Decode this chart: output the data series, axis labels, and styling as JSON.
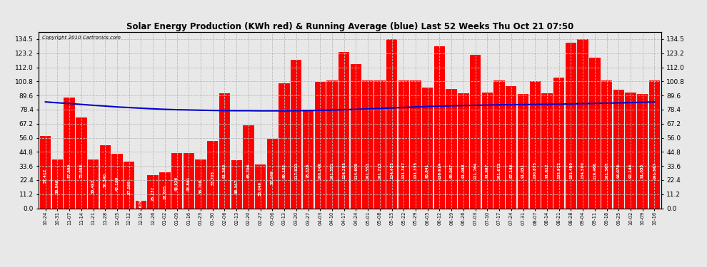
{
  "title": "Solar Energy Production (KWh red) & Running Average (blue) Last 52 Weeks Thu Oct 21 07:50",
  "copyright": "Copyright 2010 Cartronics.com",
  "bar_color": "#FF0000",
  "avg_color": "#0000CC",
  "background_color": "#E8E8E8",
  "grid_color": "#BBBBBB",
  "ylim": [
    0,
    140
  ],
  "yticks": [
    0.0,
    11.2,
    22.4,
    33.6,
    44.8,
    56.0,
    67.2,
    78.4,
    89.6,
    100.8,
    112.0,
    123.2,
    134.5
  ],
  "categories": [
    "10-24",
    "10-31",
    "11-07",
    "11-14",
    "11-21",
    "11-28",
    "12-05",
    "12-12",
    "12-19",
    "12-26",
    "01-02",
    "01-09",
    "01-16",
    "01-23",
    "01-30",
    "02-06",
    "02-13",
    "02-20",
    "02-27",
    "03-06",
    "03-13",
    "03-20",
    "03-27",
    "04-03",
    "04-10",
    "04-17",
    "04-24",
    "05-01",
    "05-08",
    "05-15",
    "05-22",
    "05-29",
    "06-05",
    "06-12",
    "06-19",
    "06-26",
    "07-03",
    "07-10",
    "07-17",
    "07-24",
    "07-31",
    "08-07",
    "08-14",
    "08-21",
    "08-28",
    "09-04",
    "09-11",
    "09-18",
    "09-25",
    "10-02",
    "10-09",
    "10-16"
  ],
  "values": [
    57.412,
    38.846,
    87.99,
    72.058,
    38.493,
    50.34,
    43.169,
    37.069,
    6.079,
    26.232,
    28.605,
    43.926,
    43.861,
    38.708,
    53.703,
    91.563,
    38.347,
    65.706,
    35.049,
    55.049,
    99.102,
    117.921,
    78.326,
    100.146,
    101.551,
    124.205,
    114.6,
    101.551,
    101.713,
    134.455,
    101.347,
    101.335,
    95.841,
    128.914,
    95.007,
    91.088,
    121.764,
    91.997,
    101.613,
    97.146,
    91.051,
    100.875,
    91.612,
    103.912,
    131.45,
    134.5,
    119.46,
    101.567,
    94.076,
    92.146,
    91.055,
    101.567
  ],
  "avg_values": [
    84.5,
    83.8,
    83.2,
    82.5,
    81.8,
    81.2,
    80.5,
    80.0,
    79.5,
    79.0,
    78.6,
    78.3,
    78.1,
    77.9,
    77.7,
    77.6,
    77.5,
    77.5,
    77.4,
    77.4,
    77.4,
    77.5,
    77.6,
    77.8,
    78.0,
    78.3,
    78.6,
    79.0,
    79.3,
    79.7,
    80.1,
    80.5,
    80.8,
    81.1,
    81.4,
    81.6,
    81.8,
    82.0,
    82.2,
    82.3,
    82.4,
    82.5,
    82.6,
    82.7,
    82.9,
    83.1,
    83.3,
    83.5,
    83.7,
    83.9,
    84.2,
    84.5
  ]
}
